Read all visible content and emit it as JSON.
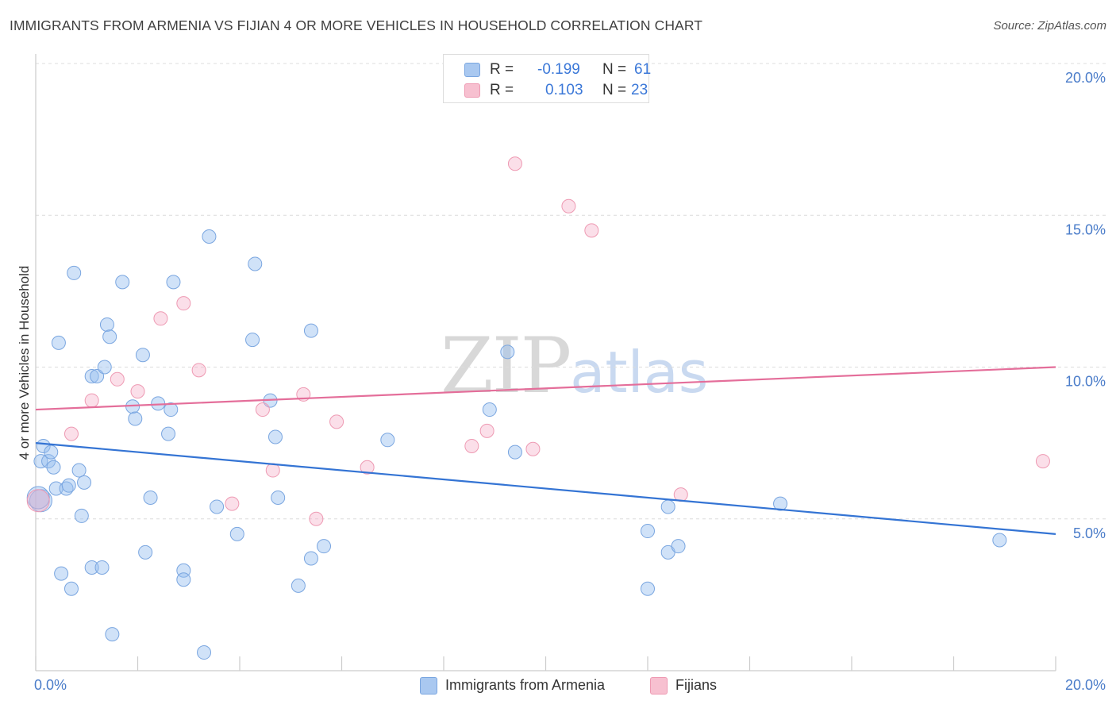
{
  "header": {
    "title": "IMMIGRANTS FROM ARMENIA VS FIJIAN 4 OR MORE VEHICLES IN HOUSEHOLD CORRELATION CHART",
    "source": "Source: ZipAtlas.com"
  },
  "watermark": {
    "zip": "ZIP",
    "atlas": "atlas"
  },
  "legend": {
    "rows": [
      {
        "r_label": "R =",
        "r_value": "-0.199",
        "n_label": "N =",
        "n_value": "61",
        "color": "#a9c8f0",
        "border": "#7aa6e0"
      },
      {
        "r_label": "R =",
        "r_value": "0.103",
        "n_label": "N =",
        "n_value": "23",
        "color": "#f7c0d0",
        "border": "#ee9ab3"
      }
    ]
  },
  "bottom_legend": {
    "items": [
      {
        "label": "Immigrants from Armenia",
        "color": "#a9c8f0",
        "border": "#7aa6e0"
      },
      {
        "label": "Fijians",
        "color": "#f7c0d0",
        "border": "#ee9ab3"
      }
    ]
  },
  "colors": {
    "blue_point_fill": "rgba(150,190,240,0.45)",
    "blue_point_stroke": "#7aa6e0",
    "blue_line": "#3474d4",
    "pink_point_fill": "rgba(245,175,200,0.40)",
    "pink_point_stroke": "#ee9ab3",
    "pink_line": "#e46e9a",
    "grid": "#dcdcdc",
    "axis": "#cccccc",
    "tick_label": "#4a7cc9"
  },
  "chart_data": {
    "type": "scatter",
    "title": "IMMIGRANTS FROM ARMENIA VS FIJIAN 4 OR MORE VEHICLES IN HOUSEHOLD CORRELATION CHART",
    "xlabel": "",
    "ylabel": "4 or more Vehicles in Household",
    "xlim": [
      0,
      20
    ],
    "ylim": [
      0,
      20
    ],
    "x_tick_labels": [
      "0.0%",
      "20.0%"
    ],
    "y_tick_labels": [
      "5.0%",
      "10.0%",
      "15.0%",
      "20.0%"
    ],
    "y_ticks": [
      5,
      10,
      15,
      20
    ],
    "grid": true,
    "legend_position": "top-center",
    "series": [
      {
        "name": "Immigrants from Armenia",
        "points": [
          [
            0.1,
            6.9
          ],
          [
            0.15,
            7.4
          ],
          [
            0.25,
            6.9
          ],
          [
            0.3,
            7.2
          ],
          [
            0.35,
            6.7
          ],
          [
            0.4,
            6.0
          ],
          [
            0.45,
            10.8
          ],
          [
            0.5,
            3.2
          ],
          [
            0.6,
            6.0
          ],
          [
            0.65,
            6.1
          ],
          [
            0.7,
            2.7
          ],
          [
            0.75,
            13.1
          ],
          [
            0.85,
            6.6
          ],
          [
            0.9,
            5.1
          ],
          [
            0.95,
            6.2
          ],
          [
            1.1,
            9.7
          ],
          [
            1.1,
            3.4
          ],
          [
            1.2,
            9.7
          ],
          [
            1.3,
            3.4
          ],
          [
            1.35,
            10.0
          ],
          [
            1.4,
            11.4
          ],
          [
            1.45,
            11.0
          ],
          [
            1.5,
            1.2
          ],
          [
            1.7,
            12.8
          ],
          [
            1.9,
            8.7
          ],
          [
            1.95,
            8.3
          ],
          [
            2.1,
            10.4
          ],
          [
            2.15,
            3.9
          ],
          [
            2.25,
            5.7
          ],
          [
            2.4,
            8.8
          ],
          [
            2.6,
            7.8
          ],
          [
            2.65,
            8.6
          ],
          [
            2.7,
            12.8
          ],
          [
            2.9,
            3.3
          ],
          [
            2.9,
            3.0
          ],
          [
            3.3,
            0.6
          ],
          [
            3.4,
            14.3
          ],
          [
            3.55,
            5.4
          ],
          [
            3.95,
            4.5
          ],
          [
            4.25,
            10.9
          ],
          [
            4.3,
            13.4
          ],
          [
            4.6,
            8.9
          ],
          [
            4.7,
            7.7
          ],
          [
            4.75,
            5.7
          ],
          [
            5.15,
            2.8
          ],
          [
            5.4,
            11.2
          ],
          [
            5.4,
            3.7
          ],
          [
            5.65,
            4.1
          ],
          [
            6.9,
            7.6
          ],
          [
            8.9,
            8.6
          ],
          [
            9.25,
            10.5
          ],
          [
            9.4,
            7.2
          ],
          [
            12.0,
            2.7
          ],
          [
            12.0,
            4.6
          ],
          [
            12.4,
            5.4
          ],
          [
            12.4,
            3.9
          ],
          [
            12.6,
            4.1
          ],
          [
            14.6,
            5.5
          ],
          [
            18.9,
            4.3
          ],
          [
            0.1,
            5.6
          ],
          [
            0.05,
            5.7
          ]
        ]
      },
      {
        "name": "Fijians",
        "points": [
          [
            0.7,
            7.8
          ],
          [
            1.1,
            8.9
          ],
          [
            1.6,
            9.6
          ],
          [
            2.0,
            9.2
          ],
          [
            2.45,
            11.6
          ],
          [
            2.9,
            12.1
          ],
          [
            3.2,
            9.9
          ],
          [
            3.85,
            5.5
          ],
          [
            4.45,
            8.6
          ],
          [
            4.65,
            6.6
          ],
          [
            5.25,
            9.1
          ],
          [
            5.5,
            5.0
          ],
          [
            5.9,
            8.2
          ],
          [
            6.5,
            6.7
          ],
          [
            8.55,
            7.4
          ],
          [
            8.85,
            7.9
          ],
          [
            9.4,
            16.7
          ],
          [
            9.75,
            7.3
          ],
          [
            10.45,
            15.3
          ],
          [
            10.9,
            14.5
          ],
          [
            12.65,
            5.8
          ],
          [
            19.75,
            6.9
          ],
          [
            0.05,
            5.6
          ]
        ]
      }
    ],
    "trend_lines": [
      {
        "series": "Immigrants from Armenia",
        "x": [
          0,
          20
        ],
        "y": [
          7.5,
          4.5
        ]
      },
      {
        "series": "Fijians",
        "x": [
          0,
          20
        ],
        "y": [
          8.6,
          10.0
        ]
      }
    ]
  }
}
